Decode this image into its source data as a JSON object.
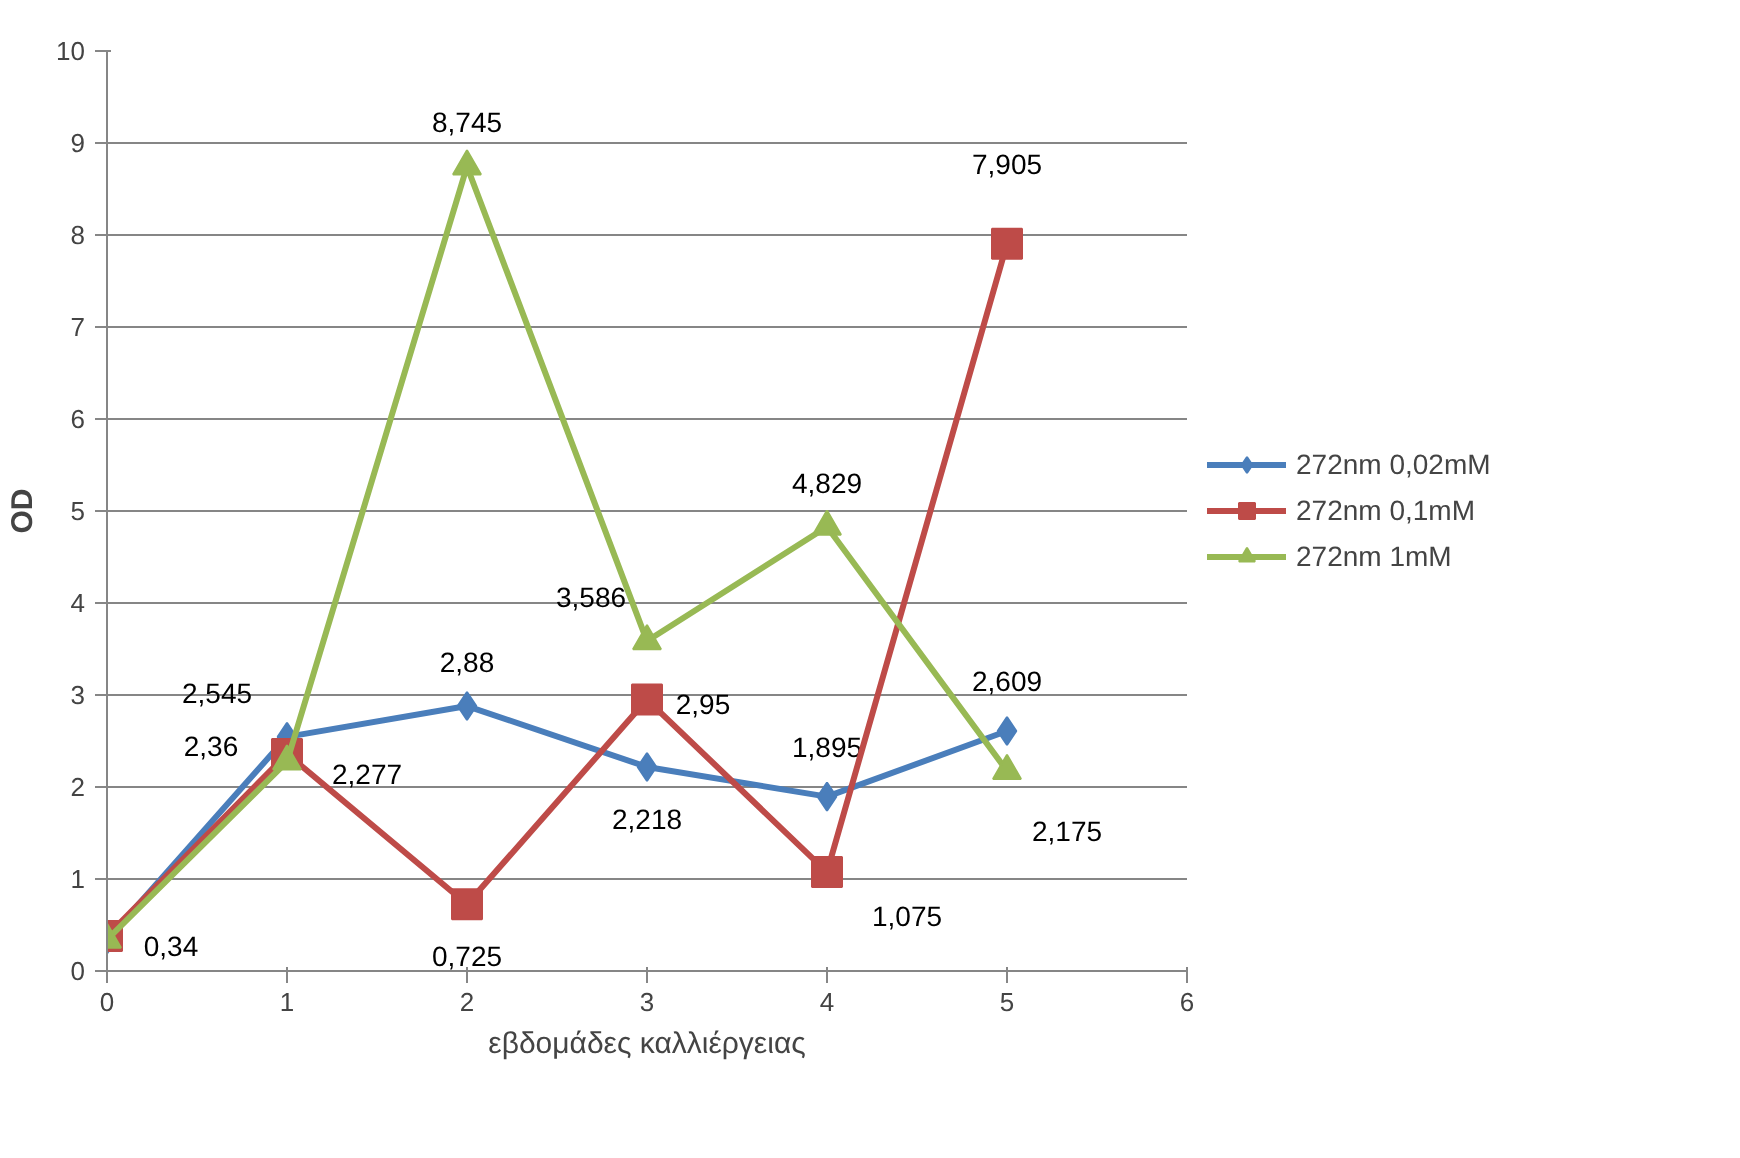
{
  "chart_data": {
    "type": "line",
    "xlabel": "εβδομάδες καλλιέργειας",
    "ylabel": "OD",
    "x": [
      0,
      1,
      2,
      3,
      4,
      5
    ],
    "xlim": [
      0,
      6
    ],
    "xticks": [
      0,
      1,
      2,
      3,
      4,
      5,
      6
    ],
    "ylim": [
      0,
      10
    ],
    "yticks": [
      0,
      1,
      2,
      3,
      4,
      5,
      6,
      7,
      8,
      9,
      10
    ],
    "grid": "y",
    "legend": "right",
    "series": [
      {
        "name": "272nm 0,02mM",
        "color": "#4a7ebb",
        "marker": "diamond",
        "values": [
          0.34,
          2.545,
          2.88,
          2.218,
          1.895,
          2.609
        ],
        "value_labels": [
          "0,34",
          "2,545",
          "2,88",
          "2,218",
          "1,895",
          "2,609"
        ]
      },
      {
        "name": "272nm 0,1mM",
        "color": "#be4b48",
        "marker": "square",
        "values": [
          0.38,
          2.36,
          0.725,
          2.95,
          1.075,
          7.905
        ],
        "value_labels": [
          null,
          "2,36",
          "0,725",
          "2,95",
          "1,075",
          "7,905"
        ]
      },
      {
        "name": "272nm 1mM",
        "color": "#98b954",
        "marker": "triangle",
        "values": [
          0.34,
          2.277,
          8.745,
          3.586,
          4.829,
          2.175
        ],
        "value_labels": [
          null,
          "2,277",
          "8,745",
          "3,586",
          "4,829",
          "2,175"
        ]
      }
    ]
  }
}
